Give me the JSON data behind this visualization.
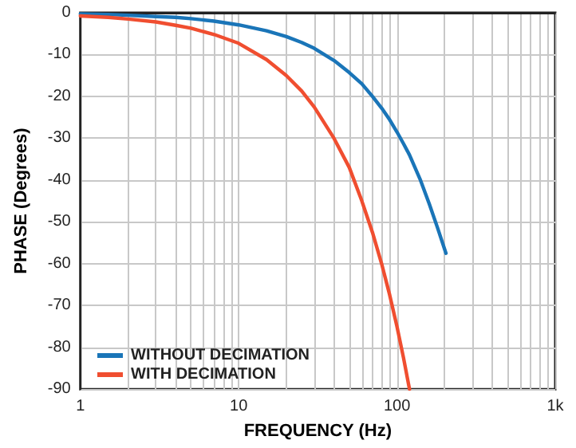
{
  "chart_data": {
    "type": "line",
    "xlabel": "FREQUENCY (Hz)",
    "ylabel": "PHASE (Degrees)",
    "x": [
      1,
      1.5,
      2,
      3,
      4,
      5,
      7,
      10,
      15,
      20,
      25,
      30,
      40,
      50,
      60,
      70,
      80,
      90,
      100,
      110,
      120,
      140,
      160,
      180,
      204
    ],
    "series": [
      {
        "name": "WITHOUT DECIMATION",
        "color": "#1a75b8",
        "values": [
          -0.3,
          -0.4,
          -0.6,
          -0.9,
          -1.1,
          -1.4,
          -2,
          -2.9,
          -4.3,
          -5.7,
          -7.1,
          -8.5,
          -11.4,
          -14.3,
          -17,
          -20,
          -22.8,
          -25.6,
          -28.5,
          -31.3,
          -34,
          -39.8,
          -45.7,
          -51.3,
          -57.5
        ]
      },
      {
        "name": "WITH DECIMATION",
        "color": "#f04e30",
        "values": [
          -0.75,
          -1.1,
          -1.5,
          -2.2,
          -3,
          -3.7,
          -5.2,
          -7.3,
          -11.2,
          -15,
          -18.7,
          -22.5,
          -30,
          -37,
          -45,
          -52.5,
          -60,
          -67.5,
          -75,
          -82.5,
          -90,
          null,
          null,
          null,
          null
        ]
      }
    ],
    "xlim": [
      1,
      1000
    ],
    "ylim": [
      -90,
      0
    ],
    "log": "x",
    "xticks": [
      1,
      {
        "value": 2,
        "label": null
      },
      {
        "value": 3,
        "label": null
      },
      {
        "value": 4,
        "label": null
      },
      {
        "value": 5,
        "label": null
      },
      {
        "value": 6,
        "label": null
      },
      {
        "value": 7,
        "label": null
      },
      {
        "value": 8,
        "label": null
      },
      {
        "value": 9,
        "label": null
      },
      10,
      {
        "value": 20,
        "label": null
      },
      {
        "value": 30,
        "label": null
      },
      {
        "value": 40,
        "label": null
      },
      {
        "value": 50,
        "label": null
      },
      {
        "value": 60,
        "label": null
      },
      {
        "value": 70,
        "label": null
      },
      {
        "value": 80,
        "label": null
      },
      {
        "value": 90,
        "label": null
      },
      100,
      {
        "value": 200,
        "label": null
      },
      {
        "value": 300,
        "label": null
      },
      {
        "value": 400,
        "label": null
      },
      {
        "value": 500,
        "label": null
      },
      {
        "value": 600,
        "label": null
      },
      {
        "value": 700,
        "label": null
      },
      {
        "value": 800,
        "label": null
      },
      {
        "value": 900,
        "label": null
      },
      {
        "value": 1000,
        "label": "1k"
      }
    ],
    "yticks": [
      0,
      -10,
      -20,
      -30,
      -40,
      -50,
      -60,
      -70,
      -80,
      -90
    ],
    "grid": true,
    "legend": "bottom left",
    "marker": "none",
    "line_style": "solid"
  }
}
